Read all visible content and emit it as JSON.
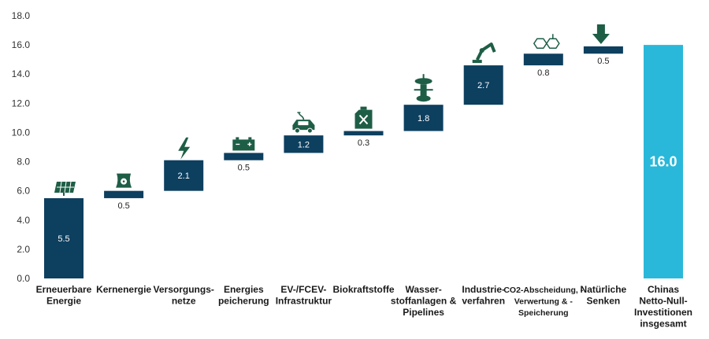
{
  "chart_data": {
    "type": "bar",
    "subtype": "waterfall",
    "categories": [
      [
        "Erneuerbare",
        "Energie"
      ],
      [
        "Kernenergie"
      ],
      [
        "Versorgungs-",
        "netze"
      ],
      [
        "Energies",
        "peicherung"
      ],
      [
        "EV-/FCEV-",
        "Infrastruktur"
      ],
      [
        "Biokraftstoffe"
      ],
      [
        "Wasser-",
        "stoffanlagen &",
        "Pipelines"
      ],
      [
        "Industrie-",
        "verfahren"
      ],
      [
        "CO2-Abscheidung, -",
        "Verwertung & -",
        "Speicherung"
      ],
      [
        "Natürliche",
        "Senken"
      ],
      [
        "Chinas",
        "Netto-Null-",
        "Investitionen",
        "insgesamt"
      ]
    ],
    "values": [
      5.5,
      0.5,
      2.1,
      0.5,
      1.2,
      0.3,
      1.8,
      2.7,
      0.8,
      0.5,
      16.0
    ],
    "value_labels": [
      "5.5",
      "0.5",
      "2.1",
      "0.5",
      "1.2",
      "0.3",
      "1.8",
      "2.7",
      "0.8",
      "0.5",
      "16.0"
    ],
    "is_total": [
      false,
      false,
      false,
      false,
      false,
      false,
      false,
      false,
      false,
      false,
      true
    ],
    "icons": [
      "solar-panel-icon",
      "nuclear-plant-icon",
      "lightning-icon",
      "battery-icon",
      "electric-car-icon",
      "fuel-canister-icon",
      "hydrogen-tower-icon",
      "robot-arm-icon",
      "molecule-icon",
      "down-arrow-icon",
      ""
    ],
    "yticks": [
      "0.0",
      "2.0",
      "4.0",
      "6.0",
      "8.0",
      "10.0",
      "12.0",
      "14.0",
      "16.0",
      "18.0"
    ],
    "ylim": [
      0,
      18
    ],
    "grid": false,
    "title": "",
    "xlabel": "",
    "ylabel": "",
    "colors": {
      "bar": "#0d3f5f",
      "total": "#29b8d9",
      "icon": "#1e5e46"
    }
  }
}
